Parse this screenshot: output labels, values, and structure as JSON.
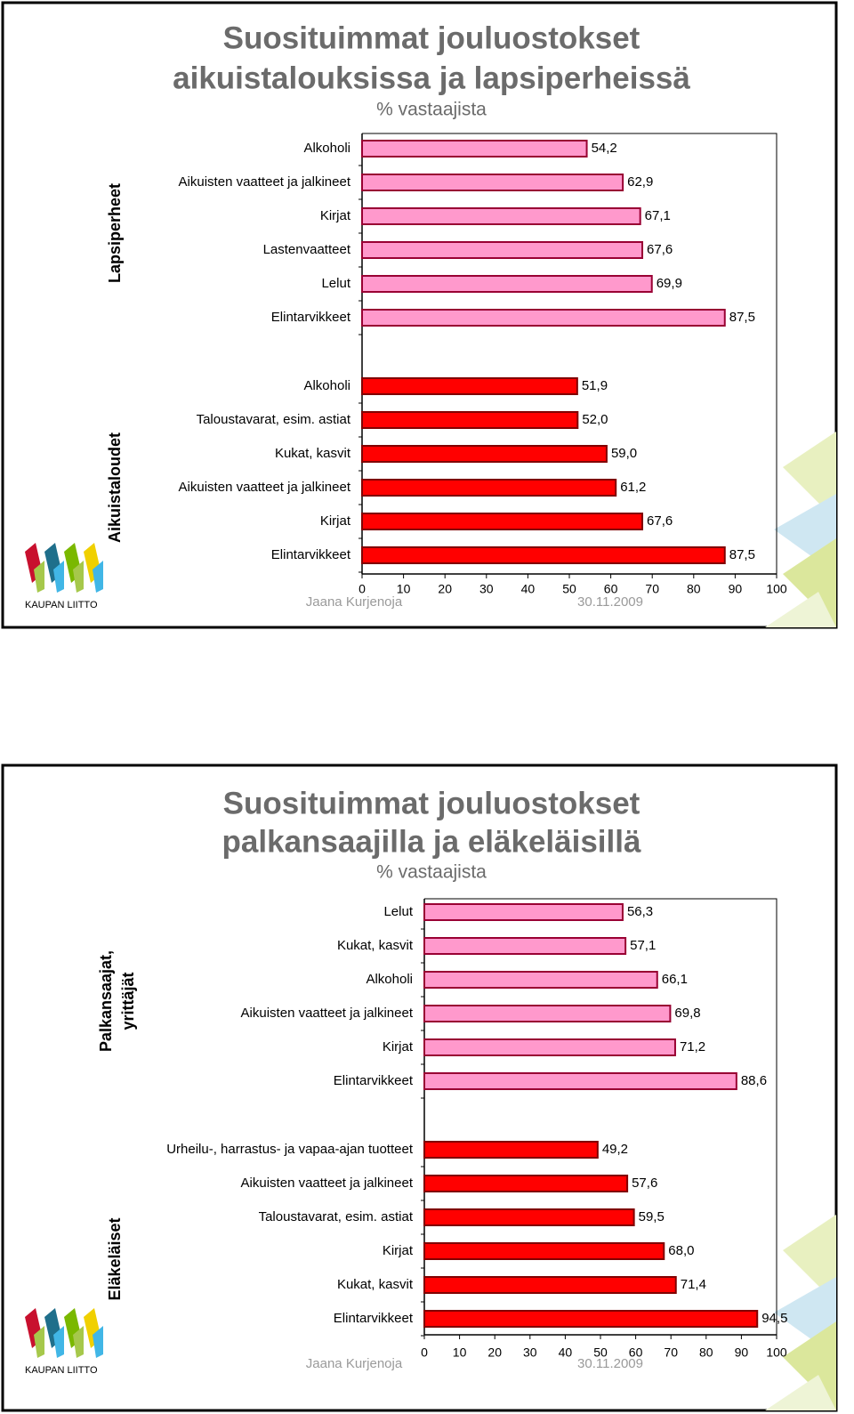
{
  "chart_data": [
    {
      "type": "bar",
      "orientation": "horizontal",
      "title": [
        "Suosituimmat jouluostokset",
        "aikuistalouksissa ja lapsiperheissä"
      ],
      "subtitle": "% vastaajista",
      "groups": [
        {
          "name": [
            "Lapsiperheet"
          ],
          "color": "#ff99cc",
          "categories": [
            "Alkoholi",
            "Aikuisten vaatteet ja jalkineet",
            "Kirjat",
            "Lastenvaatteet",
            "Lelut",
            "Elintarvikkeet"
          ],
          "values": [
            54.2,
            62.9,
            67.1,
            67.6,
            69.9,
            87.5
          ],
          "value_labels": [
            "54,2",
            "62,9",
            "67,1",
            "67,6",
            "69,9",
            "87,5"
          ]
        },
        {
          "name": [
            "Aikuistaloudet"
          ],
          "color": "#ff0000",
          "categories": [
            "Alkoholi",
            "Taloustavarat, esim. astiat",
            "Kukat, kasvit",
            "Aikuisten vaatteet ja jalkineet",
            "Kirjat",
            "Elintarvikkeet"
          ],
          "values": [
            51.9,
            52.0,
            59.0,
            61.2,
            67.6,
            87.5
          ],
          "value_labels": [
            "51,9",
            "52,0",
            "59,0",
            "61,2",
            "67,6",
            "87,5"
          ]
        }
      ],
      "xlim": [
        0,
        100
      ],
      "xticks": [
        0,
        10,
        20,
        30,
        40,
        50,
        60,
        70,
        80,
        90,
        100
      ],
      "footer": {
        "author": "Jaana Kurjenoja",
        "date": "30.11.2009",
        "logo": "KAUPAN LIITTO"
      }
    },
    {
      "type": "bar",
      "orientation": "horizontal",
      "title": [
        "Suosituimmat jouluostokset",
        "palkansaajilla ja eläkeläisillä"
      ],
      "subtitle": "% vastaajista",
      "groups": [
        {
          "name": [
            "Palkansaajat,",
            "yrittäjät"
          ],
          "color": "#ff99cc",
          "categories": [
            "Lelut",
            "Kukat, kasvit",
            "Alkoholi",
            "Aikuisten vaatteet ja jalkineet",
            "Kirjat",
            "Elintarvikkeet"
          ],
          "values": [
            56.3,
            57.1,
            66.1,
            69.8,
            71.2,
            88.6
          ],
          "value_labels": [
            "56,3",
            "57,1",
            "66,1",
            "69,8",
            "71,2",
            "88,6"
          ]
        },
        {
          "name": [
            "Eläkeläiset"
          ],
          "color": "#ff0000",
          "categories": [
            "Urheilu-, harrastus- ja vapaa-ajan tuotteet",
            "Aikuisten vaatteet ja jalkineet",
            "Taloustavarat, esim. astiat",
            "Kirjat",
            "Kukat, kasvit",
            "Elintarvikkeet"
          ],
          "values": [
            49.2,
            57.6,
            59.5,
            68.0,
            71.4,
            94.5
          ],
          "value_labels": [
            "49,2",
            "57,6",
            "59,5",
            "68,0",
            "71,4",
            "94,5"
          ]
        }
      ],
      "xlim": [
        0,
        100
      ],
      "xticks": [
        0,
        10,
        20,
        30,
        40,
        50,
        60,
        70,
        80,
        90,
        100
      ],
      "footer": {
        "author": "Jaana Kurjenoja",
        "date": "30.11.2009",
        "logo": "KAUPAN LIITTO"
      }
    }
  ]
}
